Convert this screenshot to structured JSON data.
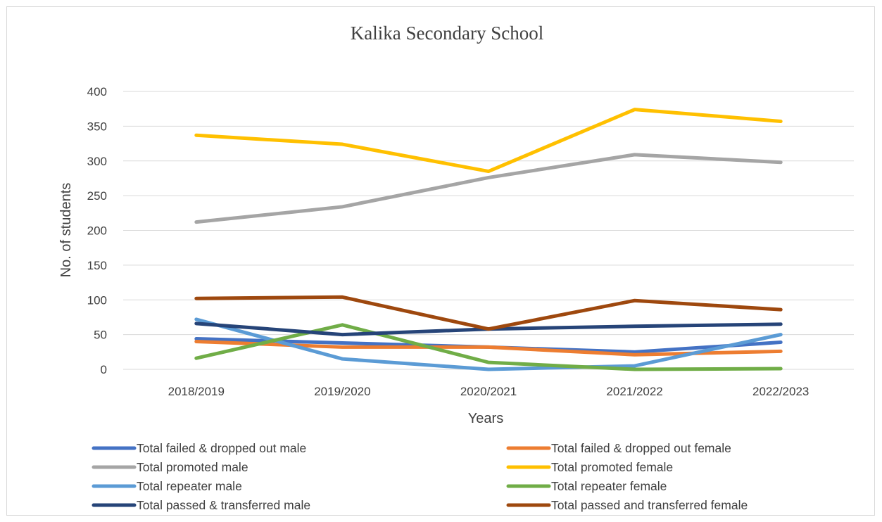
{
  "chart_data": {
    "type": "line",
    "title": "Kalika Secondary School",
    "xlabel": "Years",
    "ylabel": "No. of students",
    "categories": [
      "2018/2019",
      "2019/2020",
      "2020/2021",
      "2021/2022",
      "2022/2023"
    ],
    "ylim": [
      0,
      400
    ],
    "yticks": [
      0,
      50,
      100,
      150,
      200,
      250,
      300,
      350,
      400
    ],
    "grid": true,
    "legend_position": "bottom",
    "series": [
      {
        "name": "Total failed & dropped out male",
        "color": "#4472c4",
        "values": [
          44,
          38,
          32,
          25,
          39
        ]
      },
      {
        "name": "Total failed & dropped out female",
        "color": "#ed7d31",
        "values": [
          40,
          32,
          32,
          21,
          26
        ]
      },
      {
        "name": "Total promoted male",
        "color": "#a5a5a5",
        "values": [
          212,
          234,
          276,
          309,
          298
        ]
      },
      {
        "name": "Total promoted female",
        "color": "#ffc000",
        "values": [
          337,
          324,
          285,
          374,
          357
        ]
      },
      {
        "name": "Total repeater male",
        "color": "#5b9bd5",
        "values": [
          72,
          15,
          0,
          5,
          50
        ]
      },
      {
        "name": "Total repeater female",
        "color": "#70ad47",
        "values": [
          16,
          64,
          10,
          0,
          1
        ]
      },
      {
        "name": "Total passed & transferred male",
        "color": "#264478",
        "values": [
          66,
          50,
          58,
          62,
          65
        ]
      },
      {
        "name": "Total passed and transferred female",
        "color": "#9e480e",
        "values": [
          102,
          104,
          58,
          99,
          86
        ]
      }
    ]
  }
}
